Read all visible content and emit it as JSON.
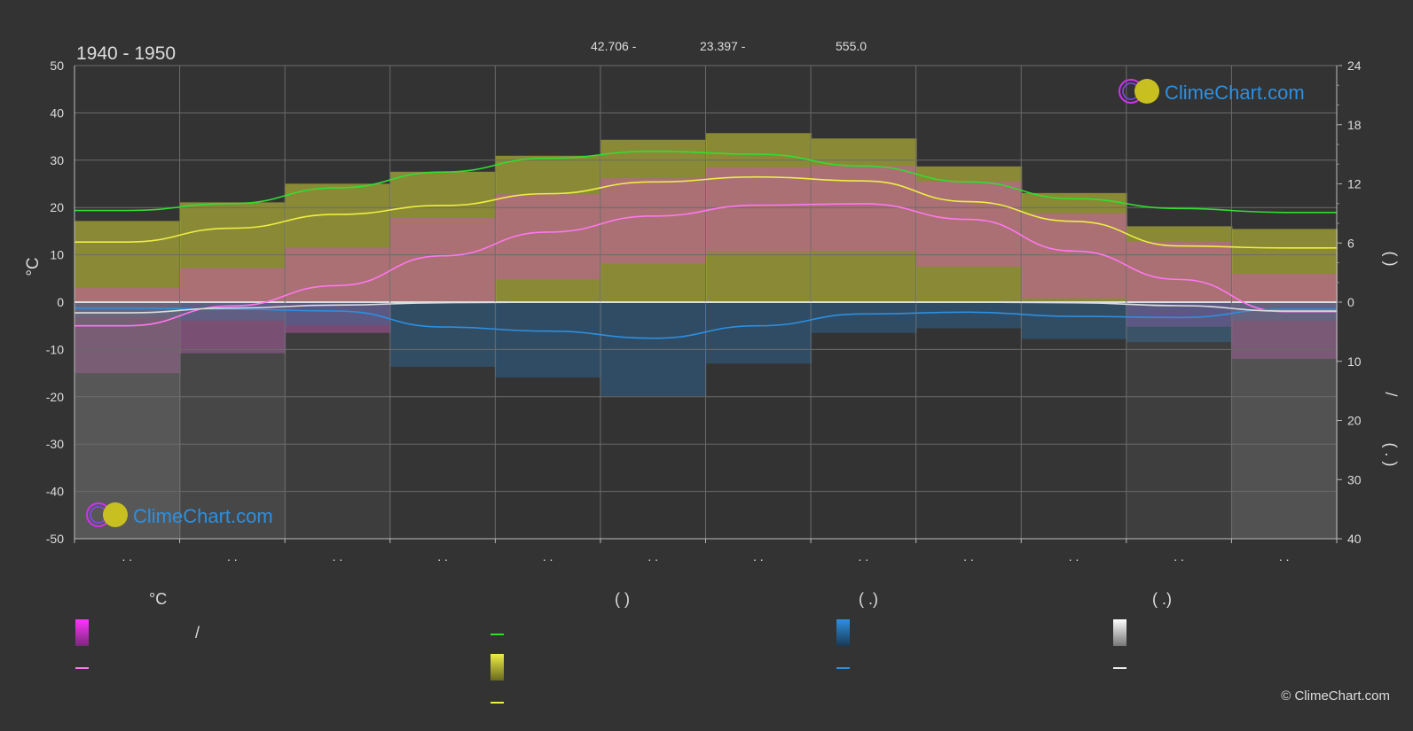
{
  "header": {
    "period": "1940 - 1950",
    "coord_lat": "42.706 -",
    "coord_lon": "23.397 -",
    "elevation": "555.0"
  },
  "brand": {
    "name": "ClimeChart.com",
    "copyright": "© ClimeChart.com"
  },
  "colors": {
    "background": "#333333",
    "grid": "#6b6b6b",
    "temp_band": "#d050c0",
    "sun_band": "#a8a838",
    "rain_band": "#2a6aa0",
    "snow_band": "#777777",
    "daylight_line": "#33dd33",
    "sunshine_line": "#eeee44",
    "temp_mean_line": "#ff77ee",
    "rain_line": "#2d8fe0",
    "snow_line": "#dddddd",
    "brand_blue": "#2d8fe0"
  },
  "axes": {
    "left_unit": "°C",
    "right_top_label": "(     )",
    "right_bottom_label": "/",
    "right_bottom_label2": "(  .  )",
    "month_labels": [
      ". .",
      ". .",
      ". .",
      ". .",
      ". .",
      ". .",
      ". .",
      ". .",
      ". .",
      ". .",
      ". .",
      ". ."
    ]
  },
  "legend": {
    "col1_header": "°C",
    "col1_slash": "/",
    "col2_header": "(          )",
    "col3_header": "(   .)",
    "col4_header": "(   .)"
  },
  "chart_data": {
    "type": "area",
    "x_months": 12,
    "left_axis": {
      "unit": "°C",
      "ylim": [
        -50,
        50
      ],
      "ticks": [
        50,
        40,
        30,
        20,
        10,
        0,
        -10,
        -20,
        -30,
        -40,
        -50
      ]
    },
    "right_axis_top": {
      "ylim": [
        0,
        24
      ],
      "ticks": [
        24,
        18,
        12,
        6,
        0
      ]
    },
    "right_axis_bottom": {
      "ylim": [
        0,
        40
      ],
      "ticks": [
        10,
        20,
        30,
        40
      ]
    },
    "grid": true,
    "series": [
      {
        "values": [
          9.3,
          10.0,
          11.6,
          13.2,
          14.6,
          15.3,
          15.0,
          13.8,
          12.2,
          10.5,
          9.5,
          9.1
        ],
        "axis": "right_top",
        "color": "#33dd33"
      },
      {
        "values": [
          6.1,
          7.5,
          8.9,
          9.8,
          11.0,
          12.2,
          12.7,
          12.3,
          10.2,
          8.2,
          5.7,
          5.5
        ],
        "axis": "right_top",
        "color": "#eeee44"
      },
      {
        "values": [
          -5.0,
          -0.8,
          3.5,
          9.8,
          14.8,
          18.2,
          20.5,
          20.8,
          17.5,
          10.8,
          4.8,
          -2.0
        ],
        "axis": "left",
        "color": "#ff77ee"
      },
      {
        "values": [
          1.0,
          1.2,
          1.5,
          4.2,
          4.9,
          6.1,
          4.0,
          2.0,
          1.7,
          2.4,
          2.6,
          1.2
        ],
        "axis": "right_bottom",
        "color": "#2d8fe0"
      },
      {
        "values": [
          1.8,
          1.0,
          0.5,
          0.1,
          0.0,
          0.0,
          0.0,
          0.0,
          0.0,
          0.1,
          0.6,
          1.5
        ],
        "axis": "right_bottom",
        "color": "#dddddd"
      }
    ]
  }
}
